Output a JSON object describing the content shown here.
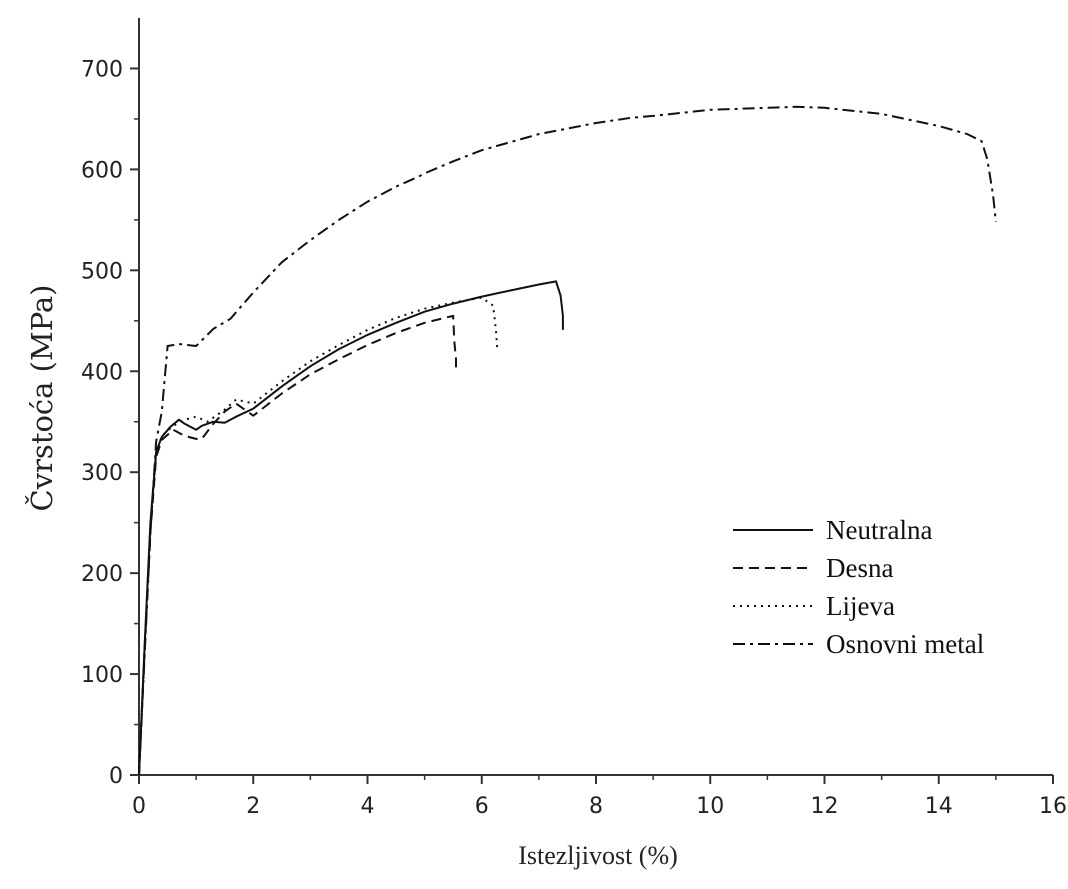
{
  "chart_data": {
    "type": "line",
    "title": "",
    "xlabel": "Istezljivost (%)",
    "ylabel": "Čvrstoća (MPa)",
    "xlim": [
      0,
      16
    ],
    "ylim": [
      0,
      750
    ],
    "xticks": [
      0,
      2,
      4,
      6,
      8,
      10,
      12,
      14,
      16
    ],
    "yticks": [
      0,
      100,
      200,
      300,
      400,
      500,
      600,
      700
    ],
    "grid": false,
    "legend_position": "bottom-right",
    "colors": {
      "line": "#111111",
      "axis": "#333333"
    },
    "series": [
      {
        "name": "Neutralna",
        "style": "solid",
        "x": [
          0,
          0.1,
          0.2,
          0.3,
          0.4,
          0.55,
          0.7,
          0.8,
          0.9,
          1.0,
          1.1,
          1.3,
          1.5,
          1.7,
          2.0,
          2.5,
          3.0,
          3.5,
          4.0,
          4.5,
          5.0,
          5.5,
          6.0,
          6.5,
          7.0,
          7.3,
          7.38,
          7.42,
          7.42
        ],
        "y": [
          0,
          130,
          250,
          320,
          335,
          345,
          352,
          348,
          345,
          342,
          346,
          350,
          349,
          355,
          363,
          385,
          405,
          422,
          436,
          448,
          459,
          467,
          474,
          480,
          486,
          489,
          475,
          455,
          441
        ]
      },
      {
        "name": "Desna",
        "style": "dashed",
        "x": [
          0,
          0.1,
          0.2,
          0.3,
          0.4,
          0.6,
          0.8,
          1.0,
          1.1,
          1.3,
          1.5,
          1.7,
          2.0,
          2.5,
          3.0,
          3.5,
          4.0,
          4.5,
          5.0,
          5.5,
          5.52,
          5.55,
          5.55
        ],
        "y": [
          0,
          125,
          240,
          315,
          332,
          342,
          336,
          333,
          333,
          348,
          360,
          368,
          356,
          378,
          397,
          412,
          426,
          438,
          448,
          455,
          430,
          412,
          401
        ]
      },
      {
        "name": "Lijeva",
        "style": "dotted",
        "x": [
          0,
          0.1,
          0.2,
          0.3,
          0.4,
          0.6,
          0.8,
          1.0,
          1.2,
          1.5,
          1.7,
          2.0,
          2.5,
          3.0,
          3.5,
          4.0,
          4.5,
          5.0,
          5.5,
          6.0,
          6.2,
          6.25,
          6.27
        ],
        "y": [
          0,
          128,
          246,
          318,
          336,
          346,
          352,
          355,
          350,
          362,
          372,
          368,
          390,
          410,
          426,
          441,
          453,
          462,
          468,
          473,
          465,
          440,
          423
        ]
      },
      {
        "name": "Osnovni metal",
        "style": "dashdot",
        "x": [
          0,
          0.1,
          0.2,
          0.3,
          0.4,
          0.5,
          0.7,
          1.0,
          1.3,
          1.6,
          2.0,
          2.5,
          3.0,
          3.5,
          4.0,
          4.5,
          4.9,
          5.0,
          5.5,
          6.0,
          7.0,
          8.0,
          8.6,
          9.0,
          10.0,
          11.0,
          11.5,
          12.0,
          13.0,
          14.0,
          14.5,
          14.75,
          14.85,
          14.95,
          15.0
        ],
        "y": [
          0,
          120,
          240,
          330,
          360,
          425,
          427,
          425,
          442,
          452,
          478,
          508,
          530,
          550,
          568,
          583,
          593,
          596,
          608,
          619,
          635,
          646,
          651,
          653,
          659,
          661,
          662,
          661,
          655,
          643,
          635,
          628,
          610,
          575,
          548
        ]
      }
    ]
  }
}
